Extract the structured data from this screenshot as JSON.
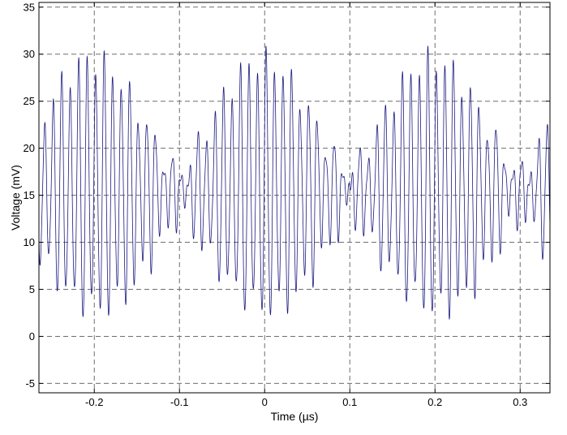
{
  "chart_data": {
    "type": "line",
    "title": "",
    "xlabel": "Time (µs)",
    "ylabel": "Voltage (mV)",
    "xlim": [
      -0.265,
      0.335
    ],
    "ylim": [
      -6,
      35.5
    ],
    "grid": true,
    "legend": "none",
    "x_ticks": [
      -0.2,
      -0.1,
      0,
      0.1,
      0.2,
      0.3
    ],
    "x_tick_labels": [
      "-0.2",
      "-0.1",
      "0",
      "0.1",
      "0.2",
      "0.3"
    ],
    "y_ticks": [
      -5,
      0,
      5,
      10,
      15,
      20,
      25,
      30,
      35
    ],
    "y_tick_labels": [
      "-5",
      "0",
      "5",
      "10",
      "15",
      "20",
      "25",
      "30",
      "35"
    ],
    "series": [
      {
        "line_color": "#1a1a80",
        "description_values": "Amplitude-modulated oscillation centered near 15 mV: carrier frequency about 100 cycles per microsecond, envelope repeating every 0.2 microseconds with maxima near -0.18, 0, 0.2 (peaks up to about 31 mV and troughs near 2 mV) and minima near -0.1 and 0.1 (swing about 14-17 mV).",
        "envelope_peaks": [
          {
            "x": -0.18,
            "min": 2.5,
            "max": 29.0
          },
          {
            "x": 0.0,
            "min": 2.0,
            "max": 31.5
          },
          {
            "x": 0.2,
            "min": 1.5,
            "max": 31.0
          }
        ],
        "envelope_nodes": [
          {
            "x": -0.1,
            "min": 14.0,
            "max": 17.5
          },
          {
            "x": 0.1,
            "min": 13.5,
            "max": 17.0
          }
        ]
      }
    ]
  }
}
